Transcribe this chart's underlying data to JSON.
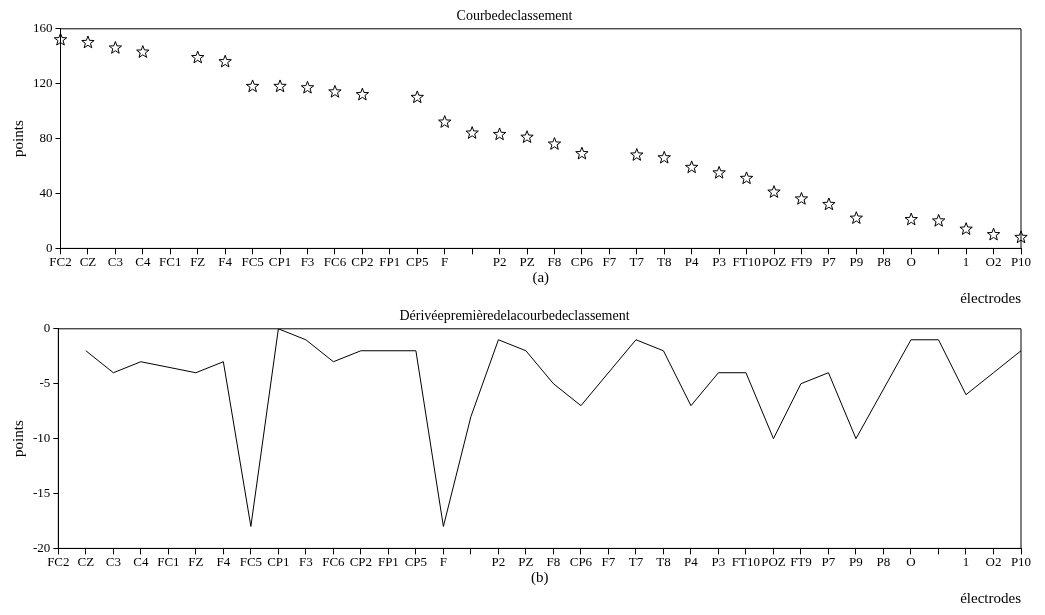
{
  "chart_data": [
    {
      "type": "scatter",
      "title": "Courbedeclassement",
      "xlabel": "électrodes",
      "ylabel": "points",
      "annotations": [
        "(a)"
      ],
      "categories": [
        "FC2",
        "CZ",
        "C3",
        "C4",
        "FC1",
        "FZ",
        "F4",
        "FC5",
        "CP1",
        "F3",
        "FC6",
        "CP2",
        "FP1",
        "CP5",
        "F",
        null,
        "P2",
        "PZ",
        "F8",
        "CP6",
        "F7",
        "T7",
        "T8",
        "P4",
        "P3",
        "FT10",
        "POZ",
        "FT9",
        "P7",
        "P9",
        "P8",
        "O",
        null,
        "1",
        "O2",
        "P10"
      ],
      "series": [
        {
          "color": "#000000",
          "values": [
            152,
            150,
            146,
            143,
            null,
            139,
            136,
            118,
            118,
            117,
            114,
            112,
            null,
            110,
            92,
            84,
            83,
            81,
            76,
            69,
            null,
            68,
            66,
            59,
            55,
            51,
            41,
            36,
            32,
            22,
            null,
            21,
            20,
            14,
            10,
            8
          ]
        }
      ],
      "marker": "star",
      "grid": false,
      "legend": false,
      "ylim": [
        0,
        160
      ],
      "yticks": [
        0,
        40,
        80,
        120,
        160
      ]
    },
    {
      "type": "line",
      "title": "Dérivéepremièredelacourbedeclassement",
      "xlabel": "électrodes",
      "ylabel": "points",
      "annotations": [
        "(b)"
      ],
      "categories": [
        "FC2",
        "CZ",
        "C3",
        "C4",
        "FC1",
        "FZ",
        "F4",
        "FC5",
        "CP1",
        "F3",
        "FC6",
        "CP2",
        "FP1",
        "CP5",
        "F",
        null,
        "P2",
        "PZ",
        "F8",
        "CP6",
        "F7",
        "T7",
        "T8",
        "P4",
        "P3",
        "FT10",
        "POZ",
        "FT9",
        "P7",
        "P9",
        "P8",
        "O",
        null,
        "1",
        "O2",
        "P10"
      ],
      "series": [
        {
          "color": "#000000",
          "values": [
            null,
            -2,
            -4,
            -3,
            null,
            -4,
            -3,
            -18,
            0,
            -1,
            -3,
            -2,
            null,
            -2,
            -18,
            -8,
            -1,
            -2,
            -5,
            -7,
            null,
            -1,
            -2,
            -7,
            -4,
            -4,
            -10,
            -5,
            -4,
            -10,
            null,
            -1,
            -1,
            -6,
            -4,
            -2
          ]
        }
      ],
      "marker": "none",
      "line_style": "solid",
      "grid": false,
      "legend": false,
      "ylim": [
        -20,
        0
      ],
      "yticks": [
        -20,
        -15,
        -10,
        -5,
        0
      ]
    }
  ]
}
